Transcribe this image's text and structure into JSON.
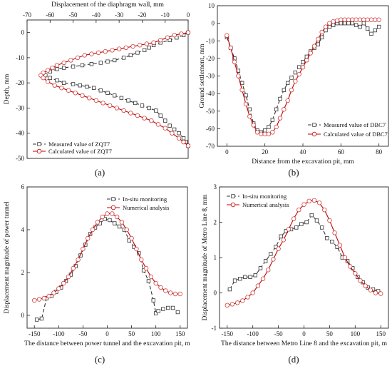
{
  "panel_labels": [
    "(a)",
    "(b)",
    "(c)",
    "(d)"
  ],
  "chart_data": [
    {
      "id": "a",
      "type": "line",
      "title": "",
      "xlabel": "Displacement of the diaphragm wall, mm",
      "ylabel": "Depth, mm",
      "xlim": [
        -70,
        0
      ],
      "ylim": [
        -50,
        5
      ],
      "xticks": [
        -70,
        -60,
        -50,
        -40,
        -30,
        -20,
        -10,
        0
      ],
      "yticks": [
        0,
        -10,
        -20,
        -30,
        -40,
        -50
      ],
      "x_axis_position": "top",
      "legend_position": "bottom-left",
      "series": [
        {
          "name": "Measured value of  ZQT7",
          "color": "#333333",
          "dash": "5,3",
          "marker": "square",
          "x": [
            0,
            -2,
            -5,
            -8,
            -12,
            -15,
            -17,
            -19,
            -22,
            -25,
            -28,
            -32,
            -35,
            -38,
            -42,
            -46,
            -50,
            -54,
            -57,
            -60,
            -62,
            -60,
            -57,
            -54,
            -50,
            -47,
            -44,
            -41,
            -38,
            -35,
            -32,
            -29,
            -26,
            -23,
            -20,
            -17,
            -14,
            -12,
            -10,
            -8,
            -6,
            -4,
            -2,
            -1,
            0
          ],
          "y": [
            0,
            -1,
            -2,
            -3,
            -4,
            -5,
            -6,
            -7,
            -8,
            -9,
            -10,
            -11,
            -11.5,
            -12,
            -12.5,
            -13,
            -13.5,
            -14,
            -14.5,
            -15.5,
            -17,
            -18,
            -19,
            -20,
            -20.5,
            -21,
            -21.5,
            -22,
            -23,
            -24,
            -25,
            -26,
            -27,
            -28,
            -29,
            -30,
            -31,
            -33,
            -35,
            -37,
            -38.5,
            -40,
            -42,
            -43.5,
            -45
          ]
        },
        {
          "name": "Calculated value of  ZQT7",
          "color": "#c00000",
          "dash": "",
          "marker": "circle",
          "x": [
            0,
            -3,
            -6,
            -9,
            -12,
            -15,
            -18,
            -21,
            -24,
            -27,
            -30,
            -33,
            -36,
            -39,
            -42,
            -45,
            -48,
            -51,
            -54,
            -57,
            -59,
            -61,
            -63,
            -64,
            -63,
            -61,
            -58,
            -55,
            -52,
            -49,
            -46,
            -43,
            -40,
            -37,
            -34,
            -31,
            -28,
            -25,
            -22,
            -19,
            -16,
            -13,
            -10,
            -7,
            -4,
            -2,
            0
          ],
          "y": [
            0,
            -0.5,
            -1,
            -2,
            -3,
            -4,
            -4.5,
            -5,
            -5.5,
            -6,
            -6.5,
            -7,
            -7.5,
            -8,
            -8.5,
            -9,
            -10,
            -11,
            -12,
            -13,
            -14,
            -15,
            -16,
            -17,
            -18,
            -19.5,
            -21,
            -22,
            -23,
            -24,
            -25,
            -26,
            -27,
            -28,
            -29,
            -30,
            -31,
            -32,
            -33,
            -34,
            -35,
            -36.5,
            -38,
            -40,
            -42,
            -43.5,
            -45
          ]
        }
      ]
    },
    {
      "id": "b",
      "type": "line",
      "title": "",
      "xlabel": "Distance from the excavation pit, mm",
      "ylabel": "Ground settlement, mm",
      "xlim": [
        -5,
        85
      ],
      "ylim": [
        -70,
        10
      ],
      "xticks": [
        0,
        20,
        40,
        60,
        80
      ],
      "yticks": [
        10,
        0,
        -10,
        -20,
        -30,
        -40,
        -50,
        -60,
        -70
      ],
      "legend_position": "bottom-right",
      "series": [
        {
          "name": "Measured value of  DBC7",
          "color": "#333333",
          "dash": "5,3",
          "marker": "square",
          "x": [
            0,
            2,
            4,
            6,
            8,
            10,
            12,
            14,
            16,
            18,
            20,
            22,
            24,
            26,
            28,
            30,
            32,
            34,
            36,
            38,
            40,
            42,
            44,
            46,
            48,
            50,
            52,
            54,
            56,
            58,
            60,
            62,
            64,
            66,
            68,
            70,
            72,
            74,
            76,
            78,
            80
          ],
          "y": [
            -8,
            -14,
            -20,
            -27,
            -34,
            -41,
            -49,
            -57,
            -61,
            -62,
            -61,
            -59,
            -55,
            -49,
            -43,
            -38,
            -34,
            -31,
            -28,
            -25,
            -22,
            -19,
            -16,
            -14,
            -12,
            -8,
            -4,
            -2,
            -1,
            0,
            0,
            0,
            0,
            0,
            -1,
            -2,
            0,
            -3,
            -6,
            -4,
            -2
          ]
        },
        {
          "name": "Calculated value of DBC7",
          "color": "#c00000",
          "dash": "",
          "marker": "circle",
          "x": [
            0,
            2,
            4,
            6,
            8,
            10,
            12,
            14,
            16,
            18,
            20,
            22,
            24,
            26,
            28,
            30,
            32,
            34,
            36,
            38,
            40,
            42,
            44,
            46,
            48,
            50,
            52,
            54,
            56,
            58,
            60,
            62,
            64,
            66,
            68,
            70,
            72,
            74,
            76,
            78,
            80
          ],
          "y": [
            -7,
            -14,
            -22,
            -30,
            -38,
            -46,
            -53,
            -58,
            -62,
            -63,
            -63,
            -63,
            -62,
            -59,
            -54,
            -49,
            -44,
            -38,
            -33,
            -29,
            -25,
            -21,
            -17,
            -13,
            -9,
            -5,
            -2,
            0,
            1,
            1.5,
            2,
            2,
            2,
            2,
            2,
            2,
            2,
            2,
            2,
            2,
            2
          ]
        }
      ]
    },
    {
      "id": "c",
      "type": "line",
      "title": "",
      "xlabel": "The distance between power tunnel and the excavation pit, m",
      "ylabel": "Displacement magnitude of power tunnel",
      "xlim": [
        -165,
        165
      ],
      "ylim": [
        -0.6,
        6
      ],
      "xticks": [
        -150,
        -100,
        -50,
        0,
        50,
        100,
        150
      ],
      "yticks": [
        0,
        2,
        4,
        6
      ],
      "legend_position": "top-right",
      "series": [
        {
          "name": "In-situ monitoring",
          "color": "#333333",
          "dash": "5,3",
          "marker": "square",
          "x": [
            -145,
            -135,
            -125,
            -115,
            -105,
            -95,
            -85,
            -75,
            -65,
            -55,
            -45,
            -35,
            -25,
            -15,
            -5,
            5,
            15,
            25,
            35,
            45,
            55,
            65,
            75,
            85,
            95,
            100,
            105,
            115,
            125,
            135,
            145
          ],
          "y": [
            -0.2,
            -0.15,
            0.8,
            0.9,
            1.1,
            1.3,
            1.6,
            1.9,
            2.3,
            2.8,
            3.3,
            3.8,
            4.1,
            4.3,
            4.5,
            4.45,
            4.3,
            4.15,
            4.0,
            3.5,
            3.2,
            2.9,
            2.1,
            1.6,
            0.7,
            0.1,
            0.2,
            0.3,
            0.35,
            0.35,
            0.15
          ]
        },
        {
          "name": "Numerical analysis",
          "color": "#c00000",
          "dash": "",
          "marker": "circle",
          "x": [
            -150,
            -140,
            -130,
            -120,
            -110,
            -100,
            -90,
            -80,
            -70,
            -60,
            -50,
            -40,
            -30,
            -20,
            -10,
            0,
            10,
            20,
            30,
            40,
            50,
            60,
            70,
            80,
            90,
            100,
            110,
            120,
            130,
            140,
            150
          ],
          "y": [
            0.7,
            0.75,
            0.8,
            0.9,
            1.05,
            1.25,
            1.5,
            1.8,
            2.2,
            2.6,
            3.1,
            3.6,
            4.0,
            4.35,
            4.6,
            4.75,
            4.75,
            4.6,
            4.35,
            4.0,
            3.6,
            3.1,
            2.6,
            2.2,
            1.8,
            1.5,
            1.3,
            1.15,
            1.05,
            1.0,
            1.0
          ]
        }
      ]
    },
    {
      "id": "d",
      "type": "line",
      "title": "",
      "xlabel": "The distance between Metro Line 8 and the excavation pit, m",
      "ylabel": "Displacement magnitude of Metro Line 8, mm",
      "xlim": [
        -165,
        165
      ],
      "ylim": [
        -1,
        3
      ],
      "xticks": [
        -150,
        -100,
        -50,
        0,
        50,
        100,
        150
      ],
      "yticks": [
        -1,
        0,
        1,
        2,
        3
      ],
      "legend_position": "top-left",
      "series": [
        {
          "name": "In-situ monitoring",
          "color": "#333333",
          "dash": "5,3",
          "marker": "square",
          "x": [
            -145,
            -135,
            -125,
            -115,
            -105,
            -95,
            -85,
            -75,
            -65,
            -55,
            -45,
            -35,
            -25,
            -15,
            -5,
            5,
            15,
            25,
            35,
            45,
            55,
            65,
            75,
            85,
            95,
            105,
            115,
            125,
            135,
            145
          ],
          "y": [
            0.1,
            0.35,
            0.4,
            0.45,
            0.45,
            0.5,
            0.7,
            0.9,
            1.1,
            1.3,
            1.6,
            1.75,
            1.8,
            1.85,
            1.95,
            2.0,
            2.2,
            2.05,
            1.85,
            1.55,
            1.45,
            1.3,
            1.0,
            0.9,
            0.7,
            0.45,
            0.3,
            0.15,
            0.1,
            0.05
          ]
        },
        {
          "name": "Numerical analysis",
          "color": "#c00000",
          "dash": "",
          "marker": "circle",
          "x": [
            -150,
            -140,
            -130,
            -120,
            -110,
            -100,
            -90,
            -80,
            -70,
            -60,
            -50,
            -40,
            -30,
            -20,
            -10,
            0,
            10,
            20,
            30,
            40,
            50,
            60,
            70,
            80,
            90,
            100,
            110,
            120,
            130,
            140,
            150
          ],
          "y": [
            -0.35,
            -0.32,
            -0.28,
            -0.22,
            -0.12,
            0.0,
            0.2,
            0.4,
            0.65,
            0.95,
            1.25,
            1.5,
            1.8,
            2.1,
            2.35,
            2.5,
            2.6,
            2.62,
            2.55,
            2.35,
            2.05,
            1.7,
            1.35,
            1.0,
            0.75,
            0.55,
            0.35,
            0.2,
            0.08,
            0.0,
            -0.02
          ]
        }
      ]
    }
  ]
}
